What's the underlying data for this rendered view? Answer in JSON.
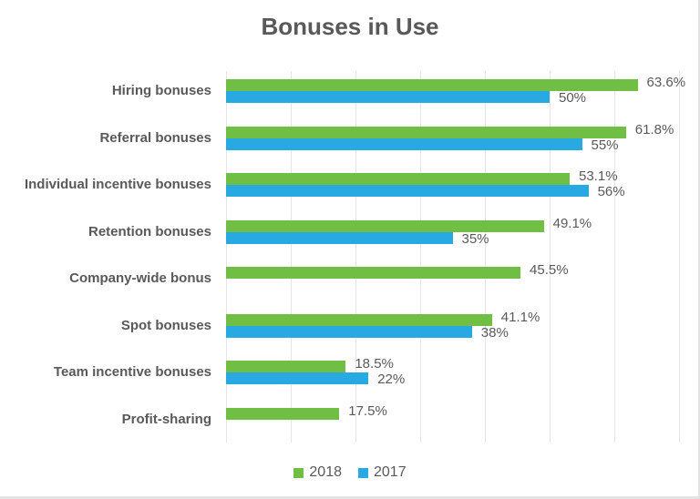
{
  "chart_data": {
    "type": "bar",
    "orientation": "horizontal",
    "title": "Bonuses in Use",
    "xlabel": "",
    "ylabel": "",
    "xlim": [
      0,
      70
    ],
    "grid": true,
    "legend_position": "bottom",
    "categories": [
      "Hiring bonuses",
      "Referral bonuses",
      "Individual incentive bonuses",
      "Retention bonuses",
      "Company-wide bonus",
      "Spot bonuses",
      "Team incentive bonuses",
      "Profit-sharing"
    ],
    "series": [
      {
        "name": "2018",
        "color": "#70bf44",
        "values": [
          63.6,
          61.8,
          53.1,
          49.1,
          45.5,
          41.1,
          18.5,
          17.5
        ],
        "labels": [
          "63.6%",
          "61.8%",
          "53.1%",
          "49.1%",
          "45.5%",
          "41.1%",
          "18.5%",
          "17.5%"
        ]
      },
      {
        "name": "2017",
        "color": "#29a9e1",
        "values": [
          50,
          55,
          56,
          35,
          null,
          38,
          22,
          null
        ],
        "labels": [
          "50%",
          "55%",
          "56%",
          "35%",
          "",
          "38%",
          "22%",
          ""
        ]
      }
    ]
  },
  "legend": [
    {
      "label": "2018",
      "color": "#70bf44"
    },
    {
      "label": "2017",
      "color": "#29a9e1"
    }
  ]
}
